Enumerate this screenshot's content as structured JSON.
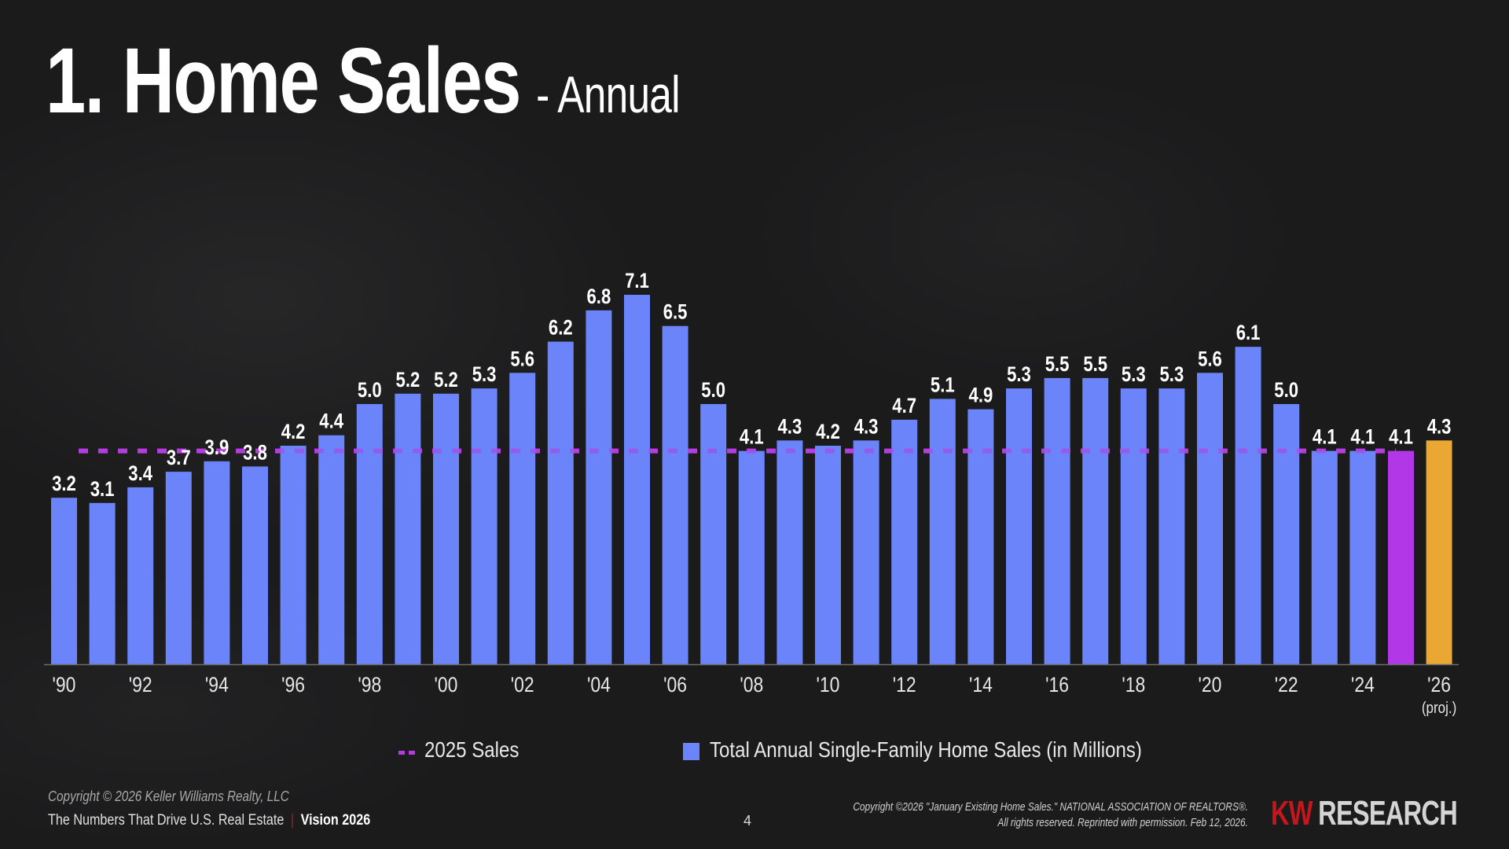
{
  "slide": {
    "title": "1. Home Sales",
    "subtitle": "- Annual",
    "page_number": "4"
  },
  "legend": {
    "dashed_label": "2025 Sales",
    "bar_label": "Total Annual Single-Family Home Sales (in Millions)"
  },
  "colors": {
    "bar": "#6b84fa",
    "bar_2025": "#b237e6",
    "bar_projection": "#eaa733",
    "reference_line": "#b53ce0",
    "background": "#1b1b1c"
  },
  "footer": {
    "copyright": "Copyright © 2026 Keller Williams Realty, LLC",
    "tagline": "The Numbers That Drive U.S. Real Estate",
    "separator": "|",
    "edition": "Vision 2026",
    "source_line1": "Copyright ©2026 \"January Existing Home Sales.\" NATIONAL ASSOCIATION OF REALTORS®.",
    "source_line2": "All rights reserved. Reprinted with permission. Feb 12, 2026.",
    "logo_kw": "KW",
    "logo_research": "RESEARCH"
  },
  "chart_data": {
    "type": "bar",
    "title": "Home Sales - Annual",
    "xlabel": "",
    "ylabel": "Total Annual Single-Family Home Sales (in Millions)",
    "ylim": [
      0,
      7.1
    ],
    "grid": false,
    "legend_position": "bottom",
    "categories": [
      "1990",
      "1991",
      "1992",
      "1993",
      "1994",
      "1995",
      "1996",
      "1997",
      "1998",
      "1999",
      "2000",
      "2001",
      "2002",
      "2003",
      "2004",
      "2005",
      "2006",
      "2007",
      "2008",
      "2009",
      "2010",
      "2011",
      "2012",
      "2013",
      "2014",
      "2015",
      "2016",
      "2017",
      "2018",
      "2019",
      "2020",
      "2021",
      "2022",
      "2023",
      "2024",
      "2025",
      "2026"
    ],
    "tick_labels": [
      "'90",
      "",
      "'92",
      "",
      "'94",
      "",
      "'96",
      "",
      "'98",
      "",
      "'00",
      "",
      "'02",
      "",
      "'04",
      "",
      "'06",
      "",
      "'08",
      "",
      "'10",
      "",
      "'12",
      "",
      "'14",
      "",
      "'16",
      "",
      "'18",
      "",
      "'20",
      "",
      "'22",
      "",
      "'24",
      "",
      "'26"
    ],
    "tick_sublabels": {
      "2026": "(proj.)"
    },
    "values": [
      3.2,
      3.1,
      3.4,
      3.7,
      3.9,
      3.8,
      4.2,
      4.4,
      5.0,
      5.2,
      5.2,
      5.3,
      5.6,
      6.2,
      6.8,
      7.1,
      6.5,
      5.0,
      4.1,
      4.3,
      4.2,
      4.3,
      4.7,
      5.1,
      4.9,
      5.3,
      5.5,
      5.5,
      5.3,
      5.3,
      5.6,
      6.1,
      5.0,
      4.1,
      4.1,
      4.1,
      4.3
    ],
    "value_labels": [
      "3.2",
      "3.1",
      "3.4",
      "3.7",
      "3.9",
      "3.8",
      "4.2",
      "4.4",
      "5.0",
      "5.2",
      "5.2",
      "5.3",
      "5.6",
      "6.2",
      "6.8",
      "7.1",
      "6.5",
      "5.0",
      "4.1",
      "4.3",
      "4.2",
      "4.3",
      "4.7",
      "5.1",
      "4.9",
      "5.3",
      "5.5",
      "5.5",
      "5.3",
      "5.3",
      "5.6",
      "6.1",
      "5.0",
      "4.1",
      "4.1",
      "4.1",
      "4.3"
    ],
    "highlight": {
      "2025": "bar_2025",
      "2026": "bar_projection"
    },
    "reference_line": {
      "name": "2025 Sales",
      "value": 4.1,
      "style": "dashed"
    },
    "series": [
      {
        "name": "Total Annual Single-Family Home Sales (in Millions)",
        "type": "bar"
      },
      {
        "name": "2025 Sales",
        "type": "dashed-line"
      }
    ]
  }
}
